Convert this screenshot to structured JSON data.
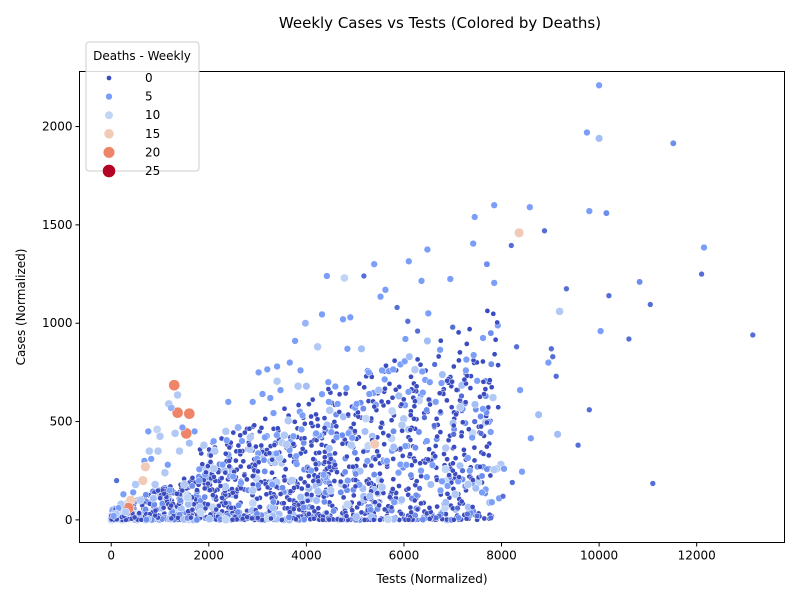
{
  "chart_data": {
    "type": "scatter",
    "title": "Weekly Cases vs Tests (Colored by Deaths)",
    "xlabel": "Tests (Normalized)",
    "ylabel": "Cases (Normalized)",
    "xlim": [
      -650,
      13800
    ],
    "ylim": [
      -115,
      2280
    ],
    "xticks": [
      0,
      2000,
      4000,
      6000,
      8000,
      10000,
      12000
    ],
    "yticks": [
      0,
      500,
      1000,
      1500,
      2000
    ],
    "grid": false,
    "legend": {
      "title": "Deaths - Weekly",
      "placement": "upper-left",
      "entries": [
        {
          "label": "0",
          "color": "#3b4cc0"
        },
        {
          "label": "5",
          "color": "#7b9ff9"
        },
        {
          "label": "10",
          "color": "#c0d4f5"
        },
        {
          "label": "15",
          "color": "#f2cbb7"
        },
        {
          "label": "20",
          "color": "#ee8468"
        },
        {
          "label": "25",
          "color": "#b40426"
        }
      ]
    },
    "points": [
      [
        10000,
        2210,
        5
      ],
      [
        9750,
        1970,
        5
      ],
      [
        10000,
        1940,
        8
      ],
      [
        11520,
        1915,
        4
      ],
      [
        7850,
        1600,
        5
      ],
      [
        8580,
        1590,
        5
      ],
      [
        9800,
        1570,
        5
      ],
      [
        10150,
        1560,
        4
      ],
      [
        7450,
        1540,
        5
      ],
      [
        8360,
        1460,
        15
      ],
      [
        8880,
        1470,
        2
      ],
      [
        12150,
        1385,
        5
      ],
      [
        6480,
        1375,
        5
      ],
      [
        7420,
        1405,
        5
      ],
      [
        8200,
        1395,
        2
      ],
      [
        6100,
        1315,
        5
      ],
      [
        5390,
        1300,
        5
      ],
      [
        7700,
        1300,
        4
      ],
      [
        4420,
        1240,
        5
      ],
      [
        4780,
        1230,
        10
      ],
      [
        5180,
        1240,
        2
      ],
      [
        6360,
        1215,
        5
      ],
      [
        6950,
        1225,
        5
      ],
      [
        7850,
        1205,
        5
      ],
      [
        10830,
        1210,
        4
      ],
      [
        12100,
        1250,
        2
      ],
      [
        5620,
        1170,
        5
      ],
      [
        5520,
        1135,
        5
      ],
      [
        9190,
        1060,
        9
      ],
      [
        9330,
        1175,
        2
      ],
      [
        10200,
        1140,
        2
      ],
      [
        11050,
        1095,
        2
      ],
      [
        3980,
        1000,
        7
      ],
      [
        4320,
        1045,
        5
      ],
      [
        4750,
        1020,
        5
      ],
      [
        4900,
        1030,
        5
      ],
      [
        5860,
        1080,
        2
      ],
      [
        6500,
        1050,
        5
      ],
      [
        6080,
        1010,
        2
      ],
      [
        6280,
        960,
        2
      ],
      [
        10030,
        960,
        5
      ],
      [
        10610,
        920,
        2
      ],
      [
        3770,
        910,
        5
      ],
      [
        4230,
        880,
        9
      ],
      [
        4840,
        870,
        5
      ],
      [
        5130,
        870,
        8
      ],
      [
        6030,
        920,
        5
      ],
      [
        6480,
        910,
        8
      ],
      [
        7620,
        925,
        5
      ],
      [
        7780,
        950,
        4
      ],
      [
        8310,
        880,
        2
      ],
      [
        9020,
        870,
        2
      ],
      [
        13150,
        940,
        2
      ],
      [
        6110,
        830,
        8
      ],
      [
        6740,
        865,
        5
      ],
      [
        7280,
        815,
        5
      ],
      [
        8960,
        800,
        5
      ],
      [
        9050,
        830,
        2
      ],
      [
        3020,
        750,
        5
      ],
      [
        3200,
        765,
        5
      ],
      [
        3400,
        780,
        5
      ],
      [
        3660,
        800,
        5
      ],
      [
        3880,
        760,
        5
      ],
      [
        4450,
        700,
        5
      ],
      [
        5280,
        750,
        5
      ],
      [
        5550,
        760,
        5
      ],
      [
        5780,
        765,
        5
      ],
      [
        6630,
        790,
        2
      ],
      [
        7270,
        760,
        5
      ],
      [
        9120,
        730,
        2
      ],
      [
        1290,
        685,
        20
      ],
      [
        1360,
        635,
        9
      ],
      [
        3400,
        705,
        9
      ],
      [
        3470,
        660,
        5
      ],
      [
        3830,
        680,
        9
      ],
      [
        4000,
        680,
        8
      ],
      [
        4820,
        670,
        5
      ],
      [
        5480,
        660,
        8
      ],
      [
        6530,
        700,
        5
      ],
      [
        8380,
        660,
        5
      ],
      [
        1180,
        590,
        9
      ],
      [
        1360,
        545,
        20
      ],
      [
        1600,
        540,
        20
      ],
      [
        1230,
        570,
        7
      ],
      [
        2400,
        600,
        5
      ],
      [
        2900,
        600,
        5
      ],
      [
        3100,
        640,
        5
      ],
      [
        3260,
        620,
        5
      ],
      [
        4460,
        600,
        5
      ],
      [
        4640,
        590,
        5
      ],
      [
        5030,
        590,
        5
      ],
      [
        5290,
        640,
        5
      ],
      [
        6650,
        600,
        5
      ],
      [
        8760,
        535,
        8
      ],
      [
        9150,
        435,
        8
      ],
      [
        9800,
        560,
        2
      ],
      [
        9570,
        380,
        2
      ],
      [
        8600,
        415,
        5
      ],
      [
        7580,
        440,
        2
      ],
      [
        5220,
        515,
        10
      ],
      [
        5400,
        385,
        15
      ],
      [
        5790,
        370,
        8
      ],
      [
        6030,
        375,
        5
      ],
      [
        940,
        460,
        10
      ],
      [
        1000,
        425,
        9
      ],
      [
        1310,
        440,
        9
      ],
      [
        1540,
        440,
        20
      ],
      [
        1460,
        470,
        5
      ],
      [
        1710,
        450,
        5
      ],
      [
        760,
        450,
        5
      ],
      [
        780,
        350,
        9
      ],
      [
        960,
        350,
        9
      ],
      [
        820,
        310,
        5
      ],
      [
        680,
        300,
        5
      ],
      [
        1100,
        240,
        9
      ],
      [
        1160,
        280,
        5
      ],
      [
        1400,
        350,
        9
      ],
      [
        1600,
        390,
        8
      ],
      [
        1900,
        380,
        9
      ],
      [
        2100,
        400,
        5
      ],
      [
        2350,
        450,
        9
      ],
      [
        2600,
        470,
        7
      ],
      [
        2850,
        420,
        9
      ],
      [
        3150,
        420,
        5
      ],
      [
        3550,
        430,
        9
      ],
      [
        3900,
        460,
        5
      ],
      [
        4200,
        440,
        5
      ],
      [
        4620,
        420,
        5
      ],
      [
        4920,
        380,
        9
      ],
      [
        5250,
        300,
        5
      ],
      [
        5650,
        300,
        5
      ],
      [
        6050,
        280,
        5
      ],
      [
        6350,
        250,
        5
      ],
      [
        6750,
        150,
        5
      ],
      [
        7050,
        130,
        9
      ],
      [
        7350,
        250,
        5
      ],
      [
        7850,
        255,
        9
      ],
      [
        8050,
        260,
        5
      ],
      [
        8420,
        245,
        5
      ],
      [
        7600,
        140,
        5
      ],
      [
        7800,
        90,
        5
      ],
      [
        7950,
        110,
        5
      ],
      [
        6550,
        180,
        8
      ],
      [
        5800,
        90,
        5
      ],
      [
        5300,
        120,
        8
      ],
      [
        4850,
        200,
        5
      ],
      [
        4500,
        150,
        9
      ],
      [
        4100,
        250,
        5
      ],
      [
        3700,
        200,
        9
      ],
      [
        3300,
        180,
        5
      ],
      [
        2900,
        150,
        9
      ],
      [
        2500,
        220,
        5
      ],
      [
        2100,
        260,
        9
      ],
      [
        1800,
        200,
        5
      ],
      [
        1500,
        180,
        9
      ],
      [
        1200,
        150,
        5
      ],
      [
        900,
        180,
        9
      ],
      [
        700,
        270,
        15
      ],
      [
        650,
        200,
        15
      ],
      [
        600,
        100,
        9
      ],
      [
        500,
        180,
        9
      ],
      [
        450,
        140,
        5
      ],
      [
        400,
        100,
        15
      ],
      [
        350,
        60,
        20
      ],
      [
        300,
        40,
        9
      ],
      [
        250,
        130,
        5
      ],
      [
        200,
        80,
        9
      ],
      [
        150,
        60,
        5
      ],
      [
        100,
        30,
        9
      ],
      [
        50,
        20,
        5
      ],
      [
        110,
        200,
        2
      ],
      [
        7000,
        980,
        2
      ],
      [
        6420,
        520,
        2
      ],
      [
        6620,
        480,
        2
      ],
      [
        7180,
        630,
        2
      ],
      [
        7450,
        500,
        2
      ],
      [
        7020,
        435,
        2
      ],
      [
        7200,
        250,
        2
      ],
      [
        7500,
        20,
        2
      ],
      [
        7300,
        30,
        2
      ],
      [
        7100,
        60,
        2
      ],
      [
        6720,
        20,
        2
      ],
      [
        8030,
        120,
        2
      ],
      [
        8220,
        190,
        2
      ],
      [
        6320,
        160,
        2
      ],
      [
        11100,
        185,
        2
      ],
      [
        7780,
        10,
        2
      ],
      [
        6660,
        10,
        2
      ]
    ]
  }
}
